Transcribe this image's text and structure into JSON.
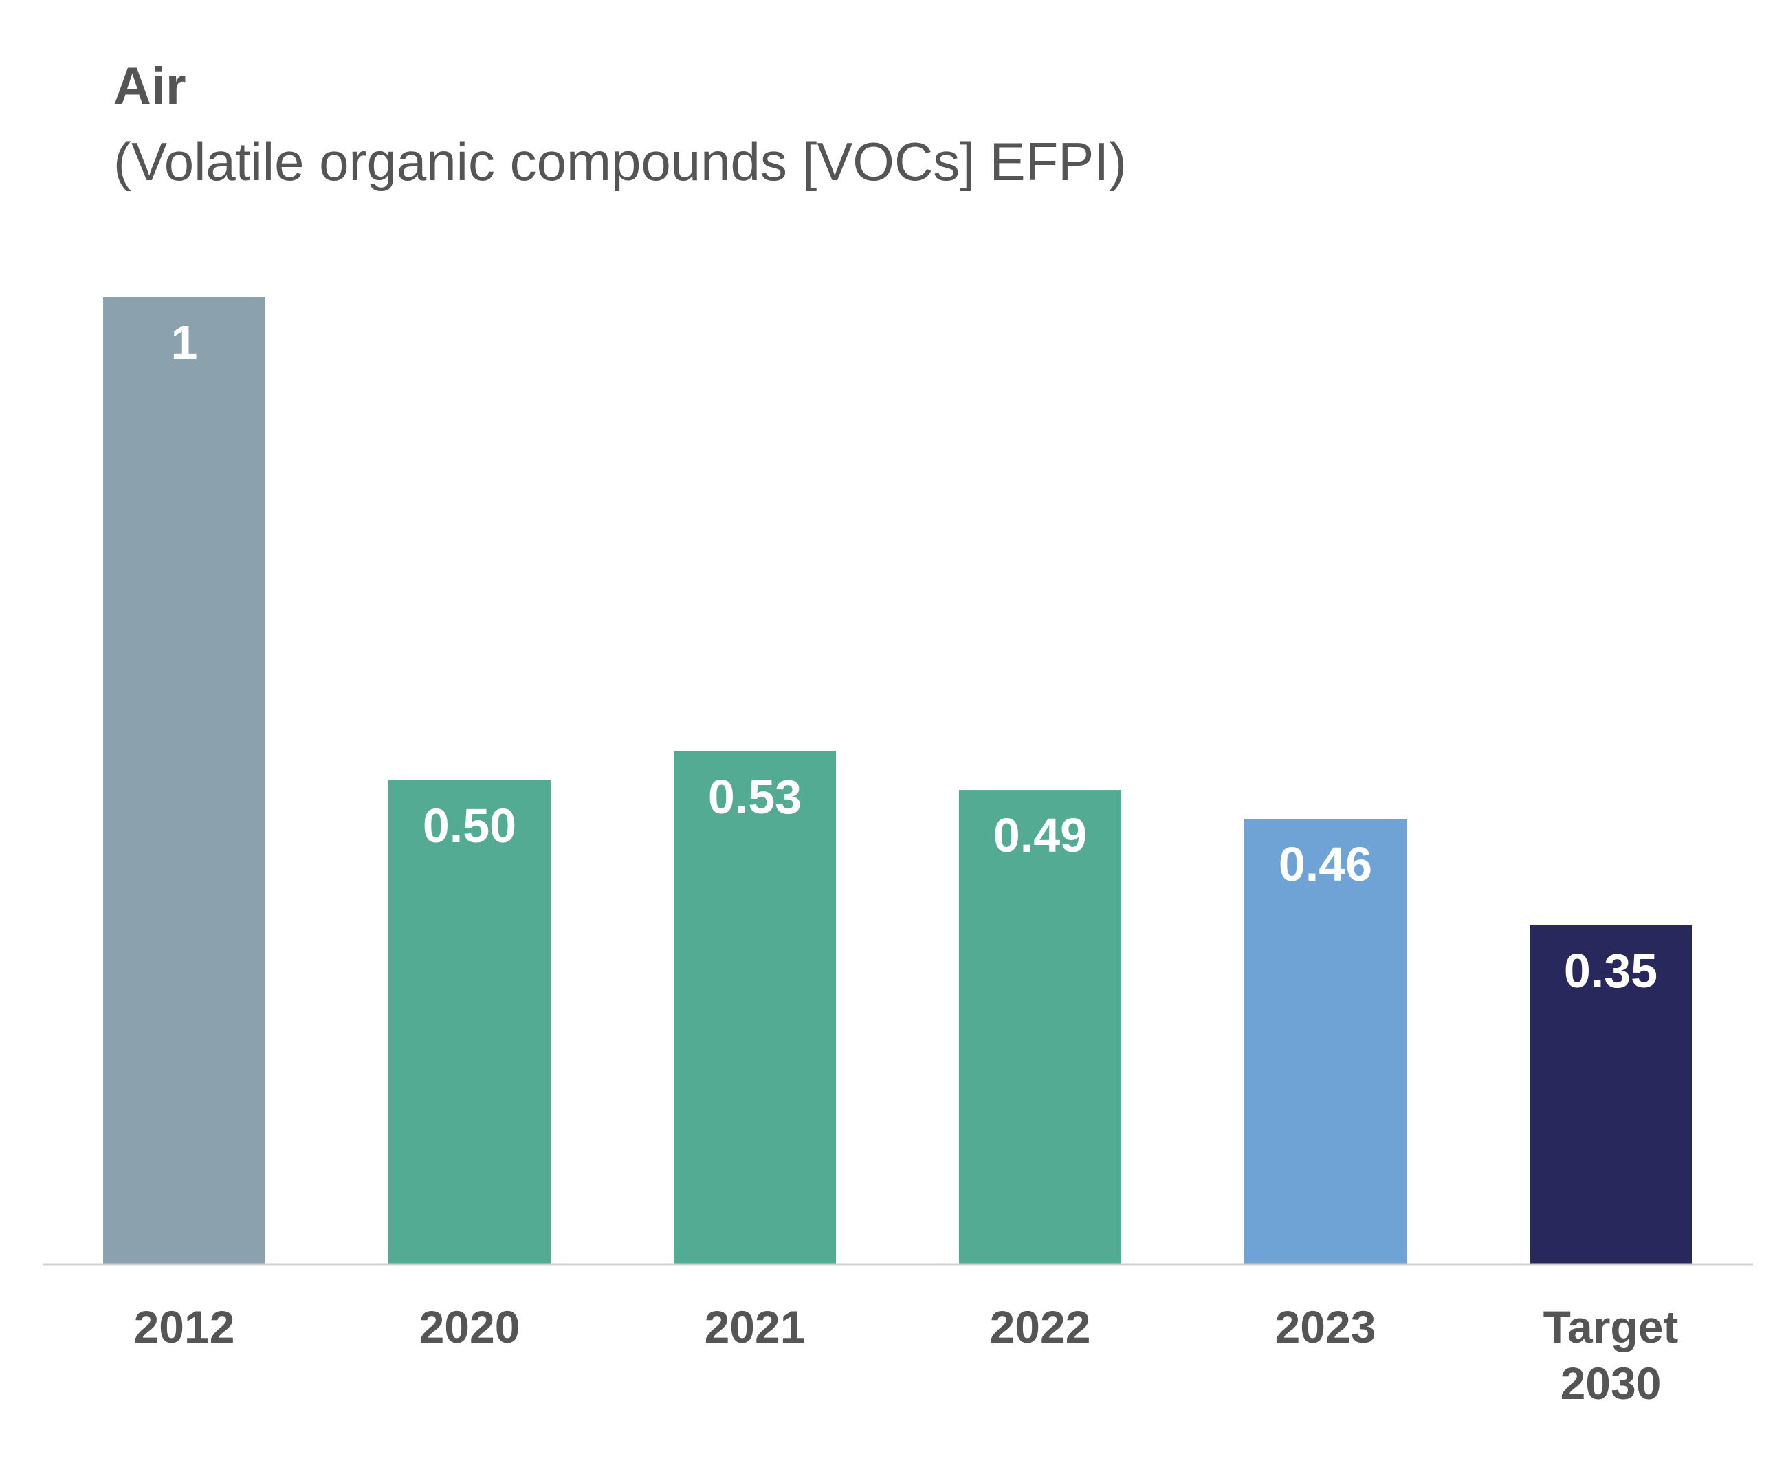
{
  "chart_data": {
    "type": "bar",
    "title": "Air",
    "subtitle": "(Volatile organic compounds [VOCs] EFPI)",
    "categories": [
      "2012",
      "2020",
      "2021",
      "2022",
      "2023",
      "Target 2030"
    ],
    "category_lines": [
      [
        "2012"
      ],
      [
        "2020"
      ],
      [
        "2021"
      ],
      [
        "2022"
      ],
      [
        "2023"
      ],
      [
        "Target",
        "2030"
      ]
    ],
    "values": [
      1,
      0.5,
      0.53,
      0.49,
      0.46,
      0.35
    ],
    "value_labels": [
      "1",
      "0.50",
      "0.53",
      "0.49",
      "0.46",
      "0.35"
    ],
    "colors": [
      "#8ba1ad",
      "#53ab93",
      "#53ab93",
      "#53ab93",
      "#6fa3d5",
      "#29285c"
    ],
    "ylim": [
      0,
      1
    ],
    "grid": false,
    "legend": "none",
    "xlabel": "",
    "ylabel": ""
  }
}
